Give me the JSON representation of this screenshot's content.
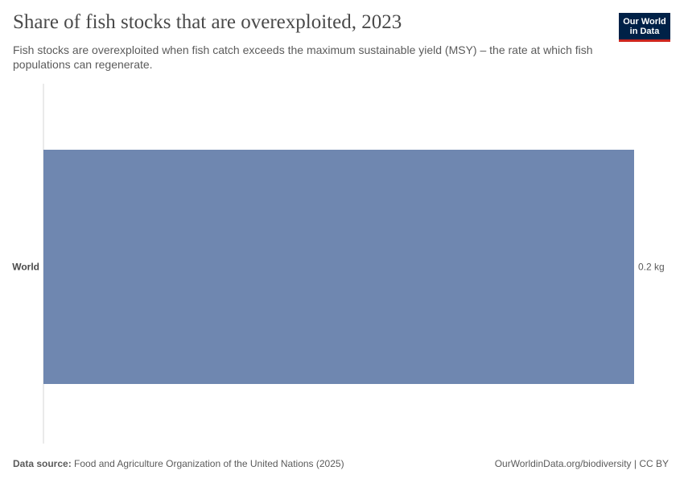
{
  "header": {
    "title": "Share of fish stocks that are overexploited, 2023",
    "subtitle": "Fish stocks are overexploited when fish catch exceeds the maximum sustainable yield (MSY) – the rate at which fish populations can regenerate."
  },
  "logo": {
    "line1": "Our World",
    "line2": "in Data",
    "background": "#002147",
    "accent": "#ce261e"
  },
  "chart_data": {
    "type": "bar",
    "orientation": "horizontal",
    "categories": [
      "World"
    ],
    "values": [
      0.2
    ],
    "value_labels": [
      "0.2 kg"
    ],
    "xlim": [
      0,
      0.2
    ],
    "bar_color": "#6f87b0",
    "grid": false
  },
  "footer": {
    "source_label": "Data source:",
    "source_text": "Food and Agriculture Organization of the United Nations (2025)",
    "url_text": "OurWorldinData.org/biodiversity | CC BY"
  }
}
